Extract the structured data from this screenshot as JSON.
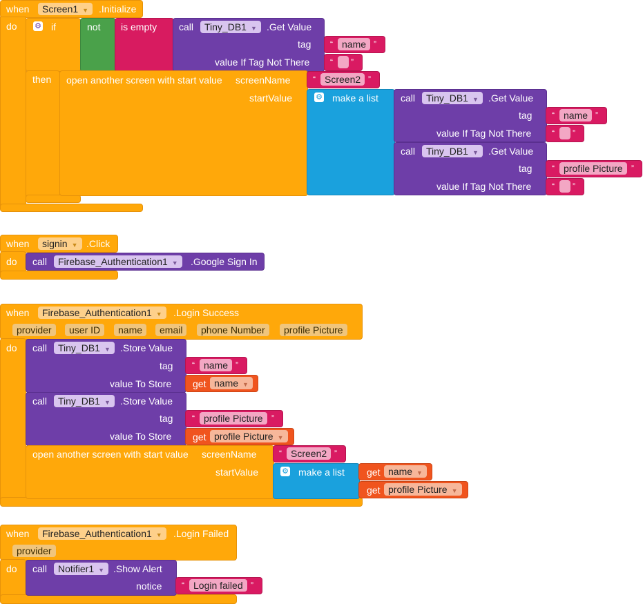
{
  "colors": {
    "event": "#ffa80a",
    "call": "#6e3ea8",
    "logic": "#4aa14a",
    "text_op": "#d81b60",
    "list": "#1aa1dd",
    "variable": "#f0541e",
    "string": "#d91a62"
  },
  "kw": {
    "when": "when",
    "do": "do",
    "if": "if",
    "then": "then",
    "not": "not",
    "is_empty": "is empty",
    "call": "call",
    "get": "get",
    "make_a_list": "make a list",
    "open_screen": "open another screen with start value",
    "screenName": "screenName",
    "startValue": "startValue",
    "tag": "tag",
    "value_if_not_there": "value If Tag Not There",
    "value_to_store": "value To Store",
    "notice": "notice",
    "quote_open": "“",
    "quote_close": "”"
  },
  "block1": {
    "component": "Screen1",
    "event": ".Initialize",
    "db": "Tiny_DB1",
    "get_value": ".Get Value",
    "tag_name": "name",
    "screen": "Screen2",
    "tag_profile": "profile Picture"
  },
  "block2": {
    "component": "signin",
    "event": ".Click",
    "auth": "Firebase_Authentication1",
    "method": ".Google Sign In"
  },
  "block3": {
    "component": "Firebase_Authentication1",
    "event": ".Login Success",
    "params": [
      "provider",
      "user ID",
      "name",
      "email",
      "phone Number",
      "profile Picture"
    ],
    "db": "Tiny_DB1",
    "store_value": ".Store Value",
    "tag_name": "name",
    "var_name": "name",
    "tag_profile": "profile Picture",
    "var_profile": "profile Picture",
    "screen": "Screen2"
  },
  "block4": {
    "component": "Firebase_Authentication1",
    "event": ".Login Failed",
    "param": "provider",
    "notifier": "Notifier1",
    "method": ".Show Alert",
    "message": "Login failed"
  }
}
